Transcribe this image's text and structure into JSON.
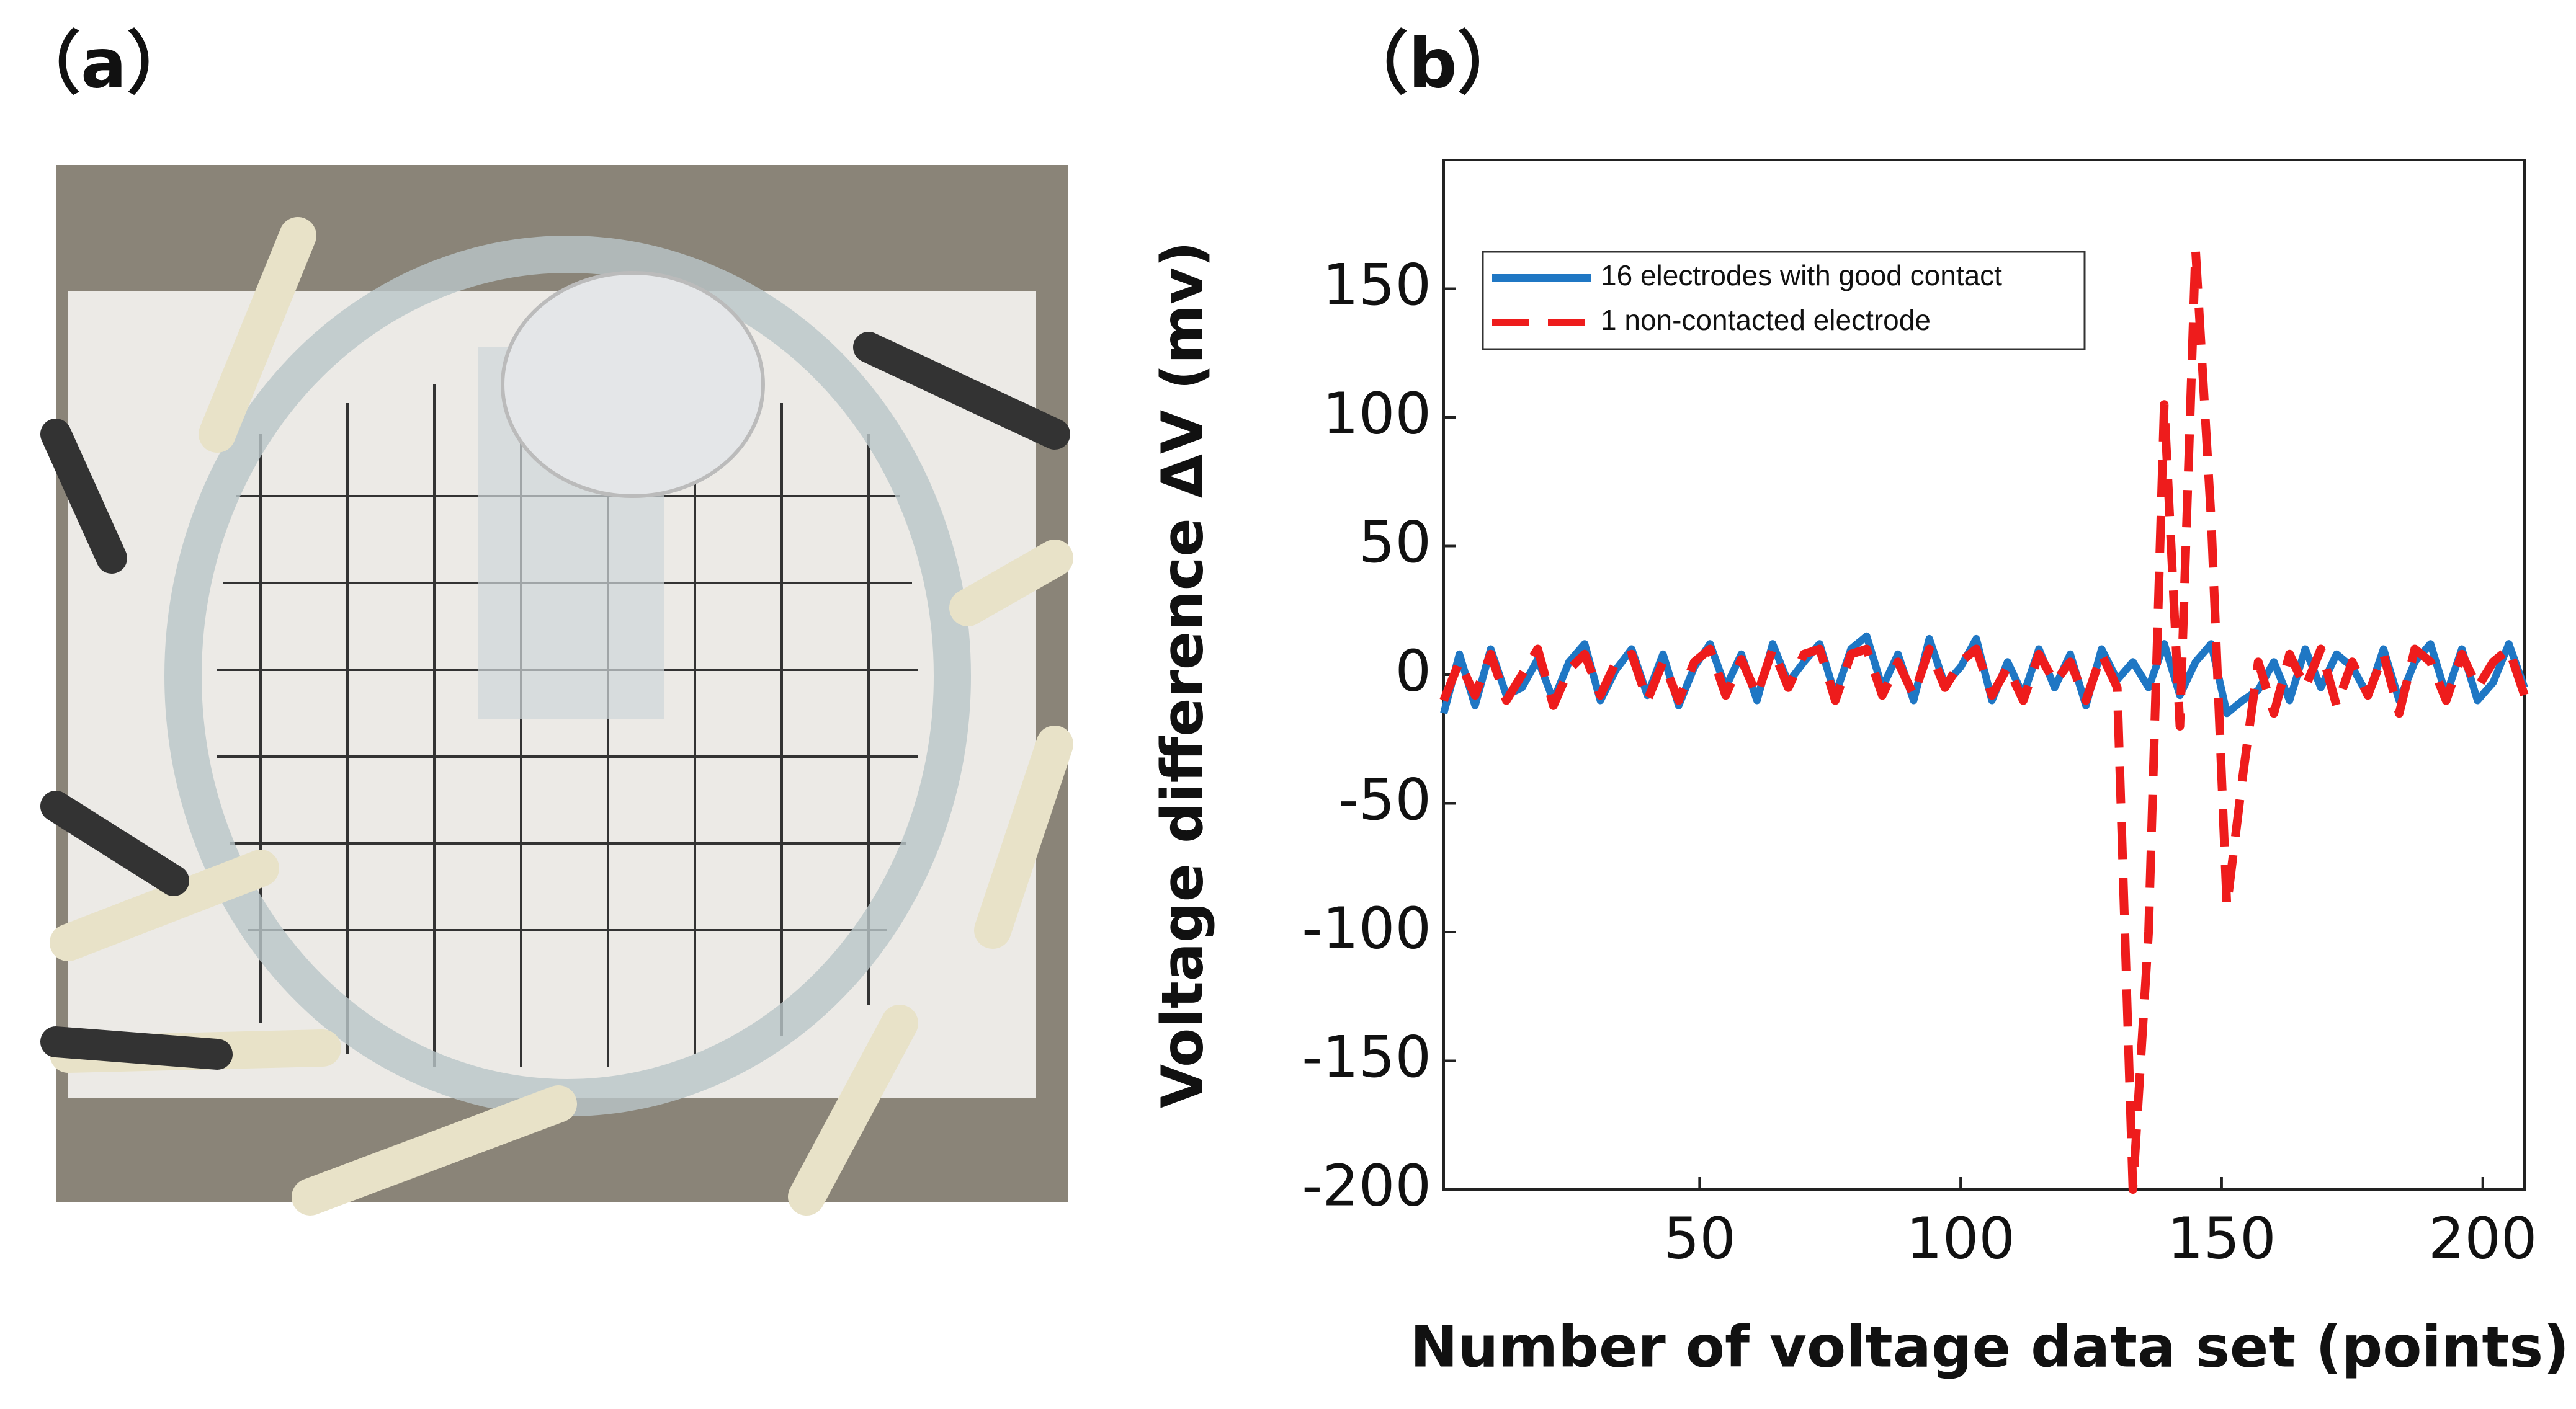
{
  "panel_a_label": "（a）",
  "chart_data": {
    "type": "line",
    "panel_label": "（b）",
    "xlabel": "Number of voltage data set (points)",
    "ylabel": "Voltage difference ΔV (mv)",
    "x": [
      1,
      4,
      7,
      10,
      13,
      16,
      19,
      22,
      25,
      28,
      31,
      34,
      37,
      40,
      43,
      46,
      49,
      52,
      55,
      58,
      61,
      64,
      67,
      70,
      73,
      76,
      79,
      82,
      85,
      88,
      91,
      94,
      97,
      100,
      103,
      106,
      109,
      112,
      115,
      118,
      121,
      124,
      127,
      130,
      133,
      136,
      139,
      142,
      145,
      148,
      151,
      154,
      157,
      160,
      163,
      166,
      169,
      172,
      175,
      178,
      181,
      184,
      187,
      190,
      193,
      196,
      199,
      202,
      205,
      208
    ],
    "series": [
      {
        "name": "16 electrodes with good contact",
        "color": "#1f77c4",
        "dash": false,
        "values": [
          -15,
          8,
          -12,
          10,
          -8,
          -5,
          6,
          -10,
          5,
          12,
          -10,
          2,
          10,
          -8,
          8,
          -12,
          3,
          12,
          -5,
          8,
          -10,
          12,
          -3,
          5,
          12,
          -8,
          10,
          15,
          -5,
          8,
          -10,
          14,
          -4,
          3,
          14,
          -10,
          5,
          -8,
          10,
          -5,
          8,
          -12,
          10,
          -2,
          5,
          -5,
          12,
          -8,
          5,
          12,
          -15,
          -10,
          -6,
          5,
          -10,
          10,
          -5,
          8,
          3,
          -8,
          10,
          -10,
          5,
          12,
          -8,
          10,
          -10,
          -3,
          12,
          -5
        ]
      },
      {
        "name": "1 non-contacted electrode",
        "color": "#ee1c1c",
        "dash": true,
        "values": [
          -10,
          5,
          -8,
          8,
          -10,
          0,
          10,
          -12,
          2,
          8,
          -8,
          5,
          8,
          -10,
          5,
          -10,
          5,
          10,
          -8,
          6,
          -8,
          10,
          -5,
          8,
          10,
          -10,
          8,
          10,
          -8,
          5,
          -8,
          10,
          -5,
          5,
          10,
          -8,
          3,
          -10,
          8,
          -3,
          5,
          -10,
          8,
          -5,
          -200,
          -100,
          105,
          -20,
          165,
          60,
          -90,
          -40,
          5,
          -15,
          8,
          -5,
          10,
          -12,
          5,
          -8,
          8,
          -15,
          10,
          5,
          -10,
          8,
          -5,
          5,
          10,
          -8
        ]
      }
    ],
    "xlim": [
      1,
      208
    ],
    "ylim": [
      -200,
      200
    ],
    "xticks": [
      50,
      100,
      150,
      200
    ],
    "yticks": [
      -200,
      -150,
      -100,
      -50,
      0,
      50,
      100,
      150
    ],
    "legend": "upper left"
  }
}
